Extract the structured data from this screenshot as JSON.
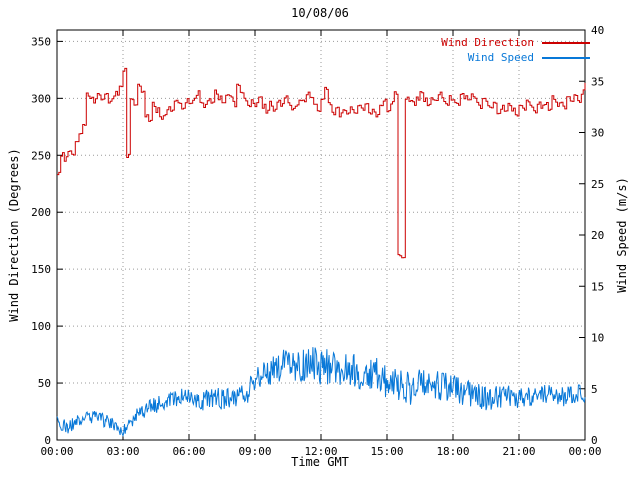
{
  "title": "10/08/06",
  "axes": {
    "x_label": "Time GMT",
    "y_left_label": "Wind Direction (Degrees)",
    "y_right_label": "Wind Speed (m/s)"
  },
  "legend": {
    "direction_label": "Wind Direction",
    "speed_label": "Wind Speed"
  },
  "colors": {
    "direction": "#cc0000",
    "speed": "#0878d8",
    "grid": "#9a9a9a",
    "axis": "#000000",
    "background": "#ffffff"
  },
  "chart_data": {
    "type": "line",
    "title": "10/08/06",
    "xlabel": "Time GMT",
    "x_range_hours": [
      0,
      24
    ],
    "x_tick_step_hours": 3,
    "x_tick_labels": [
      "00:00",
      "03:00",
      "06:00",
      "09:00",
      "12:00",
      "15:00",
      "18:00",
      "21:00",
      "00:00"
    ],
    "grid": true,
    "legend_position": "top-right",
    "y_left": {
      "label": "Wind Direction (Degrees)",
      "min": 0,
      "max": 360,
      "tick_min": 0,
      "tick_max": 350,
      "tick_step": 50
    },
    "y_right": {
      "label": "Wind Speed (m/s)",
      "min": 0,
      "max": 40,
      "tick_min": 0,
      "tick_max": 40,
      "tick_step": 5
    },
    "series": [
      {
        "name": "Wind Direction",
        "axis": "left",
        "unit": "degrees",
        "color": "#cc0000",
        "style": "steps",
        "sample_minutes": 10,
        "values": [
          235,
          250,
          247,
          255,
          252,
          260,
          270,
          275,
          303,
          300,
          298,
          305,
          300,
          302,
          298,
          300,
          305,
          310,
          325,
          250,
          300,
          295,
          310,
          305,
          285,
          280,
          295,
          290,
          283,
          287,
          292,
          288,
          300,
          295,
          290,
          298,
          295,
          300,
          305,
          298,
          293,
          300,
          297,
          305,
          300,
          295,
          305,
          300,
          295,
          310,
          305,
          298,
          292,
          297,
          295,
          300,
          293,
          288,
          295,
          290,
          298,
          293,
          300,
          296,
          290,
          295,
          300,
          297,
          305,
          300,
          295,
          290,
          298,
          310,
          295,
          288,
          292,
          285,
          290,
          287,
          292,
          288,
          295,
          290,
          293,
          287,
          290,
          285,
          295,
          300,
          290,
          295,
          305,
          162,
          160,
          300,
          298,
          295,
          300,
          305,
          298,
          295,
          300,
          296,
          303,
          298,
          295,
          300,
          298,
          295,
          305,
          300,
          297,
          302,
          298,
          293,
          300,
          296,
          290,
          295,
          287,
          292,
          288,
          295,
          290,
          285,
          295,
          290,
          298,
          293,
          288,
          295,
          292,
          297,
          290,
          300,
          295,
          298,
          293,
          300,
          297,
          302,
          298,
          305,
          315
        ]
      },
      {
        "name": "Wind Speed",
        "axis": "right",
        "unit": "m/s",
        "color": "#0878d8",
        "style": "noisy-line",
        "sample_minutes": 30,
        "values": [
          1.8,
          1.2,
          2.0,
          2.3,
          2.0,
          1.6,
          1.0,
          2.2,
          3.0,
          3.4,
          3.8,
          4.2,
          4.0,
          3.6,
          4.2,
          4.0,
          4.4,
          4.2,
          6.0,
          6.5,
          7.0,
          7.6,
          7.2,
          7.6,
          7.0,
          7.2,
          6.5,
          7.0,
          6.2,
          6.6,
          5.8,
          5.2,
          5.0,
          5.4,
          5.6,
          5.2,
          5.0,
          4.6,
          4.4,
          4.0,
          4.2,
          4.4,
          4.0,
          4.2,
          4.4,
          4.6,
          4.2,
          4.4,
          4.6
        ],
        "noise_amplitude_by_3h": [
          0.6,
          0.7,
          0.9,
          1.2,
          1.8,
          1.8,
          1.4,
          1.0,
          0.9
        ]
      }
    ]
  }
}
